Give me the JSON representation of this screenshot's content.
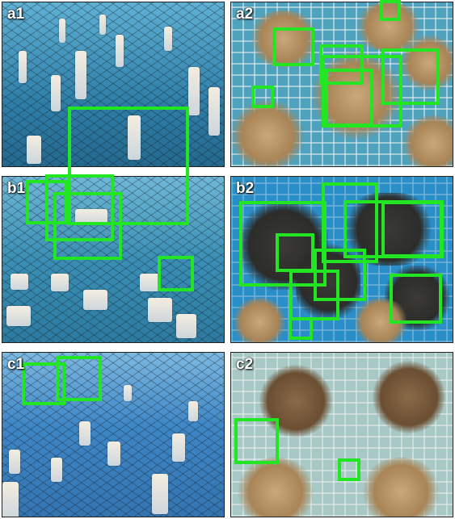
{
  "panels": [
    {
      "id": "a1",
      "label": "a1"
    },
    {
      "id": "a2",
      "label": "a2"
    },
    {
      "id": "b1",
      "label": "b1"
    },
    {
      "id": "b2",
      "label": "b2"
    },
    {
      "id": "c1",
      "label": "c1"
    },
    {
      "id": "c2",
      "label": "c2"
    }
  ],
  "colors": {
    "box": "#22e622",
    "water_a1": "#2f8fb8",
    "water_a2": "#4fa6c4",
    "water_b1": "#3a8fb4",
    "water_b2": "#2a8ec8",
    "water_c1": "#3e86c6",
    "water_c2": "#9fc4c2"
  }
}
